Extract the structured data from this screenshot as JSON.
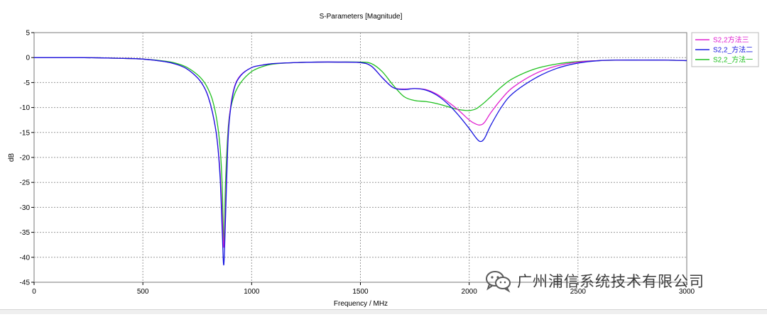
{
  "chart_data": {
    "type": "line",
    "title": "S-Parameters [Magnitude]",
    "xlabel": "Frequency / MHz",
    "ylabel": "dB",
    "xlim": [
      0,
      3000
    ],
    "ylim": [
      -45,
      5
    ],
    "xticks": [
      0,
      500,
      1000,
      1500,
      2000,
      2500,
      3000
    ],
    "yticks": [
      5,
      0,
      -5,
      -10,
      -15,
      -20,
      -25,
      -30,
      -35,
      -40,
      -45
    ],
    "grid": true,
    "legend_position": "right",
    "series": [
      {
        "name": "S2,2方法三",
        "color": "#e020d0",
        "x": [
          0,
          100,
          200,
          300,
          400,
          500,
          600,
          650,
          700,
          750,
          780,
          800,
          820,
          840,
          855,
          865,
          872,
          880,
          890,
          900,
          920,
          950,
          1000,
          1050,
          1100,
          1200,
          1300,
          1400,
          1500,
          1550,
          1600,
          1650,
          1700,
          1750,
          1800,
          1850,
          1900,
          1950,
          2000,
          2030,
          2050,
          2070,
          2100,
          2150,
          2200,
          2300,
          2400,
          2500,
          2600,
          2700,
          2800,
          2900,
          3000
        ],
        "y": [
          0,
          0,
          0,
          -0.05,
          -0.15,
          -0.3,
          -0.8,
          -1.3,
          -2.2,
          -4,
          -5.8,
          -7.8,
          -11,
          -16,
          -23,
          -32,
          -38,
          -30,
          -17,
          -11,
          -6,
          -3.5,
          -2,
          -1.5,
          -1.2,
          -1,
          -0.9,
          -0.9,
          -1,
          -1.7,
          -4,
          -6,
          -6.3,
          -6.2,
          -6.4,
          -7.3,
          -8.8,
          -10.5,
          -12.5,
          -13.3,
          -13.5,
          -13,
          -11,
          -8.2,
          -6,
          -3.3,
          -1.7,
          -0.9,
          -0.6,
          -0.5,
          -0.5,
          -0.5,
          -0.6
        ]
      },
      {
        "name": "S2,2_方法二",
        "color": "#1818e0",
        "x": [
          0,
          100,
          200,
          300,
          400,
          500,
          600,
          650,
          700,
          750,
          780,
          800,
          820,
          840,
          855,
          865,
          872,
          880,
          890,
          900,
          920,
          950,
          1000,
          1050,
          1100,
          1200,
          1300,
          1400,
          1500,
          1550,
          1600,
          1650,
          1700,
          1750,
          1800,
          1850,
          1900,
          1950,
          2000,
          2030,
          2050,
          2070,
          2100,
          2150,
          2200,
          2300,
          2400,
          2500,
          2600,
          2700,
          2800,
          2900,
          3000
        ],
        "y": [
          0,
          0,
          0,
          -0.05,
          -0.15,
          -0.3,
          -0.8,
          -1.3,
          -2.2,
          -4,
          -5.8,
          -7.8,
          -11,
          -16,
          -24,
          -35,
          -41.5,
          -32,
          -18,
          -11.5,
          -6.2,
          -3.6,
          -2,
          -1.5,
          -1.2,
          -1,
          -0.9,
          -0.9,
          -1,
          -1.7,
          -4,
          -6,
          -6.4,
          -6.2,
          -6.5,
          -7.5,
          -9.2,
          -11.5,
          -14.2,
          -16,
          -16.8,
          -16.2,
          -13.5,
          -9.8,
          -7.2,
          -4.2,
          -2.2,
          -1.1,
          -0.6,
          -0.5,
          -0.5,
          -0.5,
          -0.6
        ]
      },
      {
        "name": "S2,2_方法一",
        "color": "#20c020",
        "x": [
          0,
          100,
          200,
          300,
          400,
          500,
          600,
          650,
          700,
          750,
          780,
          800,
          820,
          840,
          855,
          865,
          872,
          880,
          890,
          900,
          920,
          950,
          1000,
          1050,
          1100,
          1200,
          1300,
          1400,
          1500,
          1550,
          1600,
          1650,
          1700,
          1750,
          1800,
          1850,
          1900,
          1950,
          2000,
          2030,
          2050,
          2070,
          2100,
          2150,
          2200,
          2300,
          2400,
          2500,
          2600,
          2700,
          2800,
          2900,
          3000
        ],
        "y": [
          0,
          0,
          0,
          -0.05,
          -0.15,
          -0.3,
          -0.7,
          -1.1,
          -1.9,
          -3.4,
          -4.8,
          -6.3,
          -8.5,
          -12.5,
          -18,
          -26,
          -37,
          -25,
          -15.5,
          -11,
          -7.5,
          -5,
          -2.8,
          -1.8,
          -1.3,
          -1,
          -0.9,
          -0.9,
          -0.9,
          -1.2,
          -2.8,
          -5.5,
          -7.8,
          -8.6,
          -8.8,
          -9.2,
          -9.8,
          -10.4,
          -10.6,
          -10.3,
          -9.7,
          -9,
          -7.8,
          -5.8,
          -4.2,
          -2.3,
          -1.3,
          -0.8,
          -0.6,
          -0.5,
          -0.5,
          -0.5,
          -0.6
        ]
      }
    ]
  },
  "watermark": {
    "text": "广州浦信系统技术有限公司",
    "icon": "wechat-logo-icon"
  },
  "colors": {
    "grid": "#9a9a9a",
    "frame": "#7a7a7a",
    "legend_border": "#b8b8b8"
  }
}
